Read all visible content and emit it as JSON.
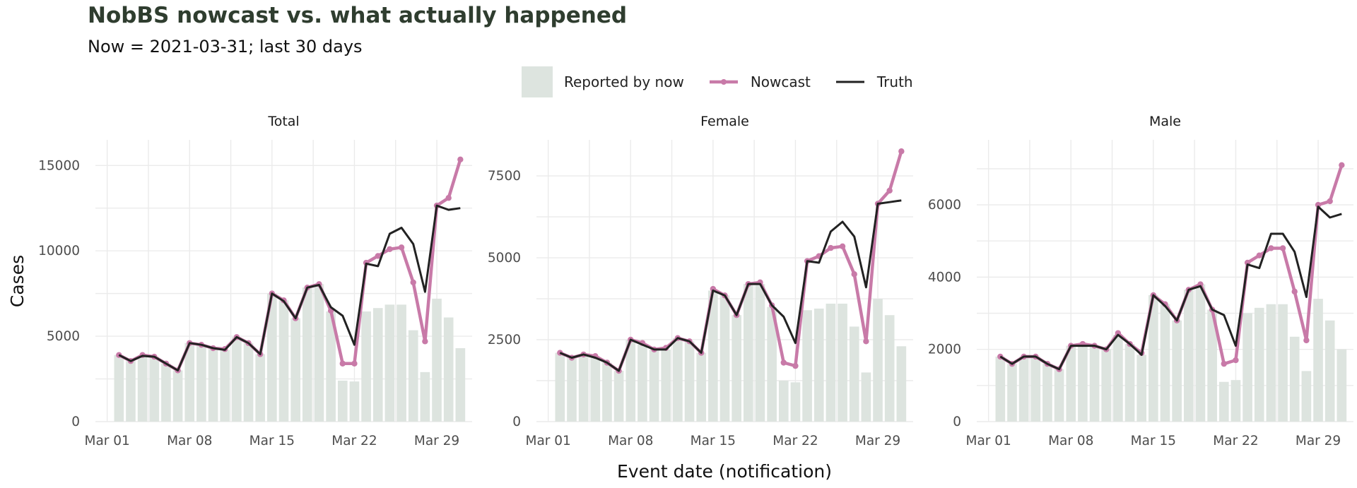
{
  "title": "NobBS nowcast vs. what actually happened",
  "subtitle": "Now = 2021-03-31; last 30 days",
  "legend": {
    "reported_label": "Reported by now",
    "nowcast_label": "Nowcast",
    "truth_label": "Truth"
  },
  "colors": {
    "reported": "#dde4df",
    "nowcast": "#c87aa8",
    "truth": "#222222",
    "title": "#2f3d2f"
  },
  "chart_data": {
    "type": "bar+line",
    "xlabel": "Event date (notification)",
    "ylabel": "Cases",
    "x_ticks": [
      "Mar 01",
      "Mar 08",
      "Mar 15",
      "Mar 22",
      "Mar 29"
    ],
    "dates": [
      "2021-03-02",
      "2021-03-03",
      "2021-03-04",
      "2021-03-05",
      "2021-03-06",
      "2021-03-07",
      "2021-03-08",
      "2021-03-09",
      "2021-03-10",
      "2021-03-11",
      "2021-03-12",
      "2021-03-13",
      "2021-03-14",
      "2021-03-15",
      "2021-03-16",
      "2021-03-17",
      "2021-03-18",
      "2021-03-19",
      "2021-03-20",
      "2021-03-21",
      "2021-03-22",
      "2021-03-23",
      "2021-03-24",
      "2021-03-25",
      "2021-03-26",
      "2021-03-27",
      "2021-03-28",
      "2021-03-29",
      "2021-03-30",
      "2021-03-31"
    ],
    "facets": [
      {
        "name": "Total",
        "ylim": [
          0,
          16500
        ],
        "y_ticks": [
          0,
          5000,
          10000,
          15000
        ],
        "reported": [
          3900,
          3550,
          3850,
          3800,
          3400,
          3000,
          4600,
          4500,
          4300,
          4200,
          4950,
          4600,
          3950,
          7500,
          7100,
          6050,
          7850,
          8050,
          6450,
          2400,
          2350,
          6450,
          6650,
          6850,
          6850,
          5350,
          2900,
          7200,
          6100,
          4300
        ],
        "nowcast": [
          3900,
          3550,
          3900,
          3800,
          3400,
          3000,
          4600,
          4500,
          4300,
          4250,
          4950,
          4600,
          3950,
          7500,
          7100,
          6050,
          7850,
          8050,
          6500,
          3400,
          3400,
          9300,
          9700,
          10100,
          10200,
          8150,
          4700,
          12650,
          13100,
          15350
        ],
        "truth": [
          3900,
          3550,
          3850,
          3800,
          3400,
          3000,
          4600,
          4500,
          4300,
          4200,
          4950,
          4600,
          3950,
          7500,
          7050,
          6050,
          7850,
          8000,
          6700,
          6200,
          4500,
          9250,
          9100,
          11000,
          11350,
          10400,
          7600,
          12650,
          12400,
          12500
        ]
      },
      {
        "name": "Female",
        "ylim": [
          0,
          8600
        ],
        "y_ticks": [
          0,
          2500,
          5000,
          7500
        ],
        "reported": [
          2100,
          1950,
          2050,
          1950,
          1800,
          1550,
          2500,
          2350,
          2200,
          2200,
          2550,
          2450,
          2100,
          4000,
          3850,
          3250,
          4200,
          4200,
          3500,
          1250,
          1200,
          3400,
          3450,
          3600,
          3600,
          2900,
          1500,
          3750,
          3250,
          2300
        ],
        "nowcast": [
          2100,
          1950,
          2050,
          2000,
          1800,
          1550,
          2500,
          2400,
          2200,
          2250,
          2550,
          2450,
          2100,
          4050,
          3850,
          3250,
          4200,
          4250,
          3550,
          1800,
          1700,
          4900,
          5050,
          5300,
          5350,
          4500,
          2450,
          6650,
          7050,
          8250
        ],
        "truth": [
          2100,
          1950,
          2050,
          1950,
          1800,
          1550,
          2500,
          2350,
          2200,
          2200,
          2550,
          2450,
          2100,
          4000,
          3850,
          3250,
          4200,
          4200,
          3550,
          3200,
          2400,
          4900,
          4850,
          5800,
          6100,
          5650,
          4100,
          6650,
          6700,
          6750
        ]
      },
      {
        "name": "Male",
        "ylim": [
          0,
          7800
        ],
        "y_ticks": [
          0,
          2000,
          4000,
          6000
        ],
        "reported": [
          1800,
          1600,
          1800,
          1800,
          1600,
          1450,
          2100,
          2100,
          2100,
          2000,
          2400,
          2150,
          1850,
          3500,
          3250,
          2800,
          3650,
          3800,
          3100,
          1100,
          1150,
          3000,
          3150,
          3250,
          3250,
          2350,
          1400,
          3400,
          2800,
          2000
        ],
        "nowcast": [
          1800,
          1600,
          1800,
          1800,
          1600,
          1450,
          2100,
          2150,
          2100,
          2000,
          2450,
          2150,
          1900,
          3500,
          3250,
          2800,
          3650,
          3800,
          3100,
          1600,
          1700,
          4400,
          4600,
          4800,
          4800,
          3600,
          2250,
          6000,
          6100,
          7100
        ],
        "truth": [
          1800,
          1600,
          1800,
          1800,
          1600,
          1450,
          2100,
          2100,
          2100,
          2000,
          2400,
          2150,
          1850,
          3500,
          3200,
          2800,
          3650,
          3750,
          3100,
          2950,
          2100,
          4350,
          4250,
          5200,
          5200,
          4700,
          3450,
          5950,
          5650,
          5750
        ]
      }
    ]
  }
}
